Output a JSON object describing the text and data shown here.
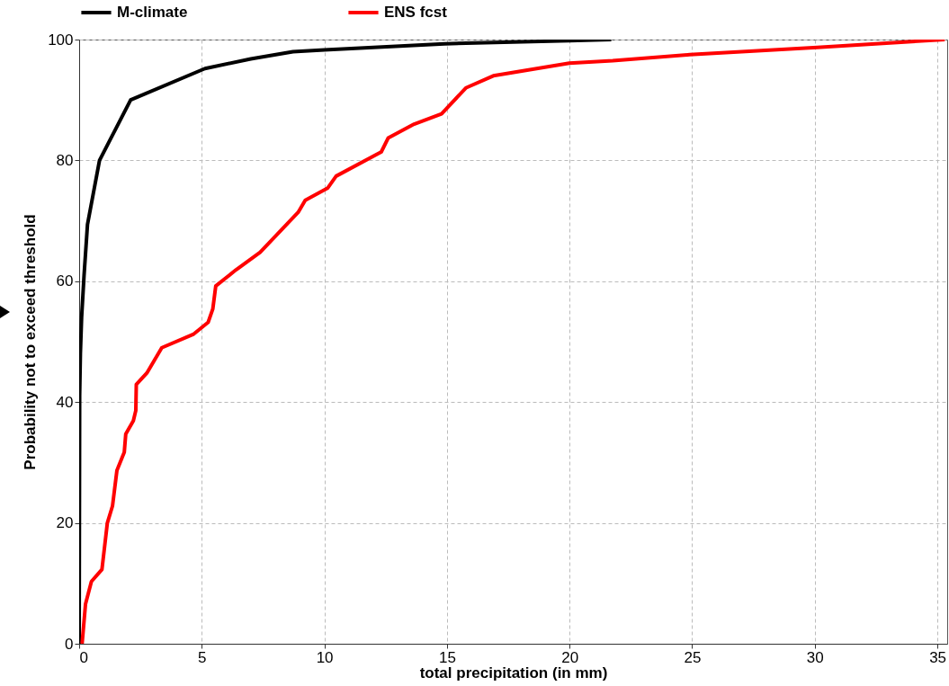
{
  "chart_data": {
    "type": "line",
    "xlabel": "total precipitation  (in mm)",
    "ylabel": "Probability not to exceed threshold",
    "xlim": [
      0,
      35.4
    ],
    "ylim": [
      0,
      100
    ],
    "xticks": [
      0,
      5,
      10,
      15,
      20,
      25,
      30,
      35
    ],
    "yticks": [
      0,
      20,
      40,
      60,
      80,
      100
    ],
    "grid": true,
    "legend": "top",
    "line_style": "solid",
    "series": [
      {
        "name": "M-climate",
        "color": "#000000",
        "x": [
          0,
          0.02,
          0.05,
          0.1,
          0.2,
          0.34,
          0.83,
          2.1,
          5.13,
          7,
          8.72,
          10,
          14.9,
          20,
          21.7
        ],
        "values": [
          0,
          41,
          48,
          54,
          61,
          69.4,
          80,
          90,
          95.2,
          96.8,
          98,
          98.3,
          99.3,
          99.8,
          100
        ]
      },
      {
        "name": "ENS fcst",
        "color": "#ff0000",
        "x": [
          0.12,
          0.26,
          0.5,
          0.93,
          1.15,
          1.36,
          1.54,
          1.84,
          1.9,
          2.21,
          2.31,
          2.33,
          2.76,
          3.37,
          4.65,
          5.26,
          5.45,
          5.57,
          6.4,
          7.38,
          8.93,
          9.22,
          10.13,
          10.48,
          12.32,
          12.6,
          13.66,
          14.78,
          15.77,
          16.89,
          19.99,
          21.76,
          24.9,
          30.1,
          35.3
        ],
        "values": [
          0,
          6.6,
          10.3,
          12.3,
          20,
          22.8,
          28.7,
          31.7,
          34.7,
          36.9,
          38.6,
          42.9,
          44.8,
          49,
          51.2,
          53.2,
          55.4,
          59.2,
          61.9,
          64.8,
          71.4,
          73.4,
          75.4,
          77.4,
          81.4,
          83.7,
          86,
          87.7,
          92,
          94,
          96.1,
          96.5,
          97.5,
          98.7,
          100
        ]
      }
    ]
  }
}
